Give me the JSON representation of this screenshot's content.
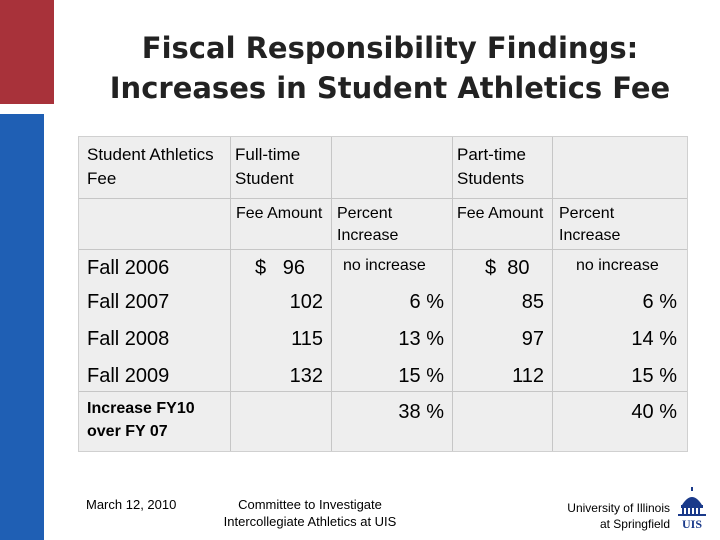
{
  "title": {
    "line1": "Fiscal Responsibility Findings:",
    "line2": "Increases in Student Athletics Fee"
  },
  "table": {
    "row_header": "Student Athletics Fee",
    "fulltime_header": "Full-time Student",
    "parttime_header": "Part-time Students",
    "fee_amount_header": "Fee Amount",
    "percent_increase_header": "Percent Increase",
    "rows": [
      {
        "label": "Fall 2006",
        "ft_fee": "$   96",
        "ft_pct": "no increase",
        "pt_fee": "$  80",
        "pt_pct": "no increase"
      },
      {
        "label": "Fall 2007",
        "ft_fee": "102",
        "ft_pct": "6 %",
        "pt_fee": "85",
        "pt_pct": "6 %"
      },
      {
        "label": "Fall 2008",
        "ft_fee": "115",
        "ft_pct": "13 %",
        "pt_fee": "97",
        "pt_pct": "14 %"
      },
      {
        "label": "Fall 2009",
        "ft_fee": "132",
        "ft_pct": "15 %",
        "pt_fee": "112",
        "pt_pct": "15 %"
      }
    ],
    "increase_label_line1": "Increase FY10",
    "increase_label_line2": "over FY 07",
    "increase_ft_pct": "38 %",
    "increase_pt_pct": "40 %"
  },
  "footer": {
    "date": "March 12, 2010",
    "committee_line1": "Committee to Investigate",
    "committee_line2": "Intercollegiate Athletics at UIS",
    "university_line1": "University of Illinois",
    "university_line2": "at Springfield",
    "logo_text": "UIS"
  },
  "colors": {
    "red_accent": "#a8323a",
    "blue_accent": "#1f5fb4",
    "table_bg": "#eeeeee",
    "logo_blue": "#1a3a8a"
  }
}
